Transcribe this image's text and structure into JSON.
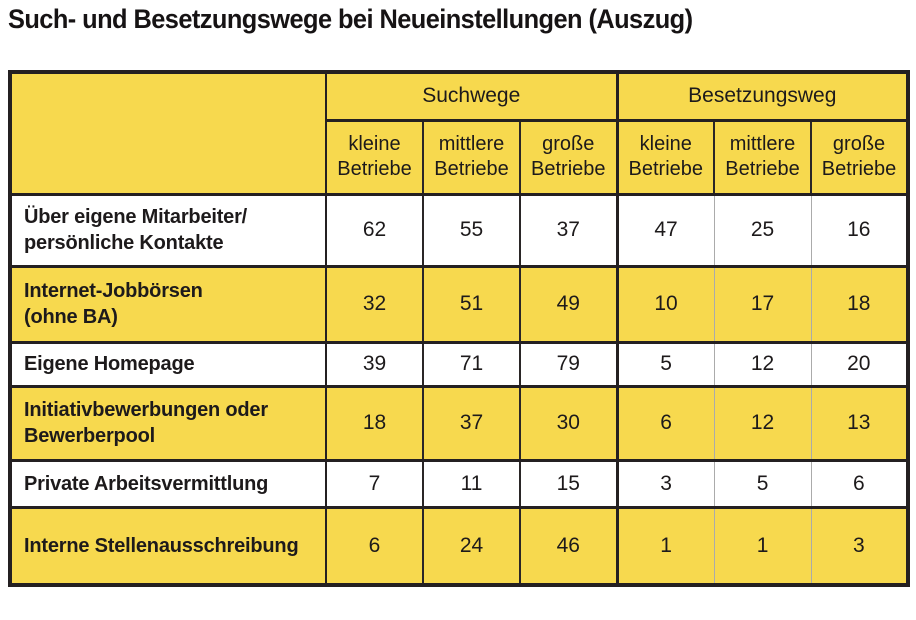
{
  "title": "Such- und Besetzungswege bei Neueinstellungen (Auszug)",
  "colors": {
    "accent_yellow": "#F7D94E",
    "border_dark": "#242021",
    "divider_gray": "#ABABAB",
    "text": "#1d1a1b"
  },
  "table": {
    "corner_label": "",
    "groups": [
      "Suchwege",
      "Besetzungsweg"
    ],
    "sub_headers": [
      "kleine\nBetriebe",
      "mittlere\nBetriebe",
      "große\nBetriebe",
      "kleine\nBetriebe",
      "mittlere\nBetriebe",
      "große\nBetriebe"
    ],
    "rows": [
      {
        "label": "Über eigene Mitarbeiter/\npersönliche Kontakte",
        "values": [
          62,
          55,
          37,
          47,
          25,
          16
        ]
      },
      {
        "label": "Internet-Jobbörsen\n(ohne BA)",
        "values": [
          32,
          51,
          49,
          10,
          17,
          18
        ]
      },
      {
        "label": "Eigene Homepage",
        "values": [
          39,
          71,
          79,
          5,
          12,
          20
        ]
      },
      {
        "label": "Initiativbewerbungen oder\nBewerberpool",
        "values": [
          18,
          37,
          30,
          6,
          12,
          13
        ]
      },
      {
        "label": "Private Arbeitsvermittlung",
        "values": [
          7,
          11,
          15,
          3,
          5,
          6
        ]
      },
      {
        "label": "Interne Stellenausschreibung",
        "values": [
          6,
          24,
          46,
          1,
          1,
          3
        ]
      }
    ]
  },
  "chart_data": {
    "type": "table",
    "title": "Such- und Besetzungswege bei Neueinstellungen (Auszug)",
    "column_groups": [
      {
        "label": "Suchwege",
        "span": 3
      },
      {
        "label": "Besetzungsweg",
        "span": 3
      }
    ],
    "columns": [
      "Suchwege – kleine Betriebe",
      "Suchwege – mittlere Betriebe",
      "Suchwege – große Betriebe",
      "Besetzungsweg – kleine Betriebe",
      "Besetzungsweg – mittlere Betriebe",
      "Besetzungsweg – große Betriebe"
    ],
    "row_labels": [
      "Über eigene Mitarbeiter/ persönliche Kontakte",
      "Internet-Jobbörsen (ohne BA)",
      "Eigene Homepage",
      "Initiativbewerbungen oder Bewerberpool",
      "Private Arbeitsvermittlung",
      "Interne Stellenausschreibung"
    ],
    "values": [
      [
        62,
        55,
        37,
        47,
        25,
        16
      ],
      [
        32,
        51,
        49,
        10,
        17,
        18
      ],
      [
        39,
        71,
        79,
        5,
        12,
        20
      ],
      [
        18,
        37,
        30,
        6,
        12,
        13
      ],
      [
        7,
        11,
        15,
        3,
        5,
        6
      ],
      [
        6,
        24,
        46,
        1,
        1,
        3
      ]
    ]
  }
}
